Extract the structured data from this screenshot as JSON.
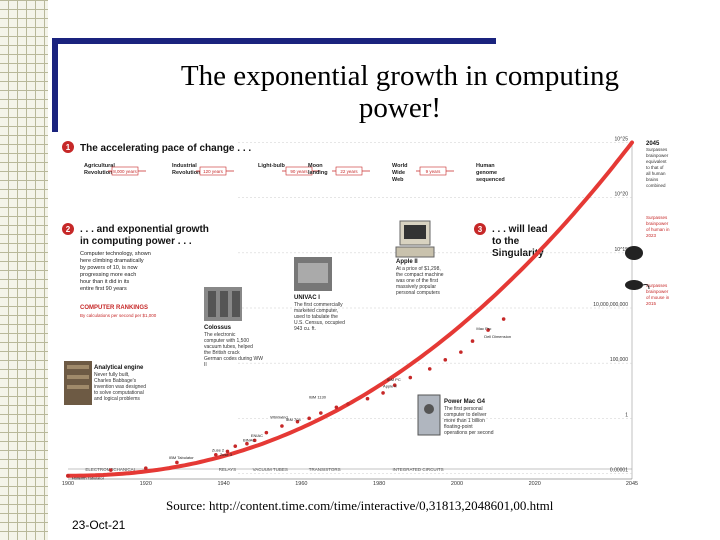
{
  "slide": {
    "title_line1": "The exponential growth in computing",
    "title_line2": "power!",
    "source": "Source: http://content.time.com/time/interactive/0,31813,2048601,00.html",
    "date": "23-Oct-21"
  },
  "chart_data": {
    "type": "scatter",
    "y_scale": "log",
    "x_ticks": [
      "1900",
      "1920",
      "1940",
      "1960",
      "1980",
      "2000",
      "2020",
      "2045"
    ],
    "y_ticks": [
      "0.00001",
      "1",
      "100,000",
      "10,000,000,000",
      "10^15",
      "10^20",
      "10^25"
    ],
    "series": [
      {
        "points": [
          {
            "x": 1900,
            "y": 6e-06
          },
          {
            "x": 1911,
            "y": 2e-05
          },
          {
            "x": 1920,
            "y": 3e-05
          },
          {
            "x": 1928,
            "y": 0.0001
          },
          {
            "x": 1938,
            "y": 0.0005
          },
          {
            "x": 1941,
            "y": 0.001
          },
          {
            "x": 1943,
            "y": 0.003
          },
          {
            "x": 1946,
            "y": 0.005
          },
          {
            "x": 1948,
            "y": 0.01
          },
          {
            "x": 1951,
            "y": 0.05
          },
          {
            "x": 1955,
            "y": 0.2
          },
          {
            "x": 1959,
            "y": 0.5
          },
          {
            "x": 1962,
            "y": 1
          },
          {
            "x": 1965,
            "y": 3
          },
          {
            "x": 1969,
            "y": 10
          },
          {
            "x": 1972,
            "y": 20
          },
          {
            "x": 1977,
            "y": 60
          },
          {
            "x": 1981,
            "y": 200
          },
          {
            "x": 1984,
            "y": 1000
          },
          {
            "x": 1988,
            "y": 5000
          },
          {
            "x": 1993,
            "y": 30000
          },
          {
            "x": 1997,
            "y": 200000
          },
          {
            "x": 2001,
            "y": 1000000
          },
          {
            "x": 2004,
            "y": 10000000
          },
          {
            "x": 2008,
            "y": 100000000
          },
          {
            "x": 2012,
            "y": 1000000000
          }
        ]
      }
    ],
    "eras": [
      "ELECTROMECHANICAL",
      "RELAYS",
      "VACUUM TUBES",
      "TRANSISTORS",
      "INTEGRATED CIRCUITS"
    ],
    "sections": {
      "s1_num": "1",
      "s1_title": "The accelerating pace of change . . .",
      "s2_num": "2",
      "s2_title_a": ". . . and exponential growth",
      "s2_title_b": "in computing power . . .",
      "s2_body": [
        "Computer technology, shown",
        "here climbing dramatically",
        "by powers of 10, is now",
        "progressing more each",
        "hour than it did in its",
        "entire first 90 years"
      ],
      "s3_num": "3",
      "s3_title_a": ". . . will lead",
      "s3_title_b": "to the",
      "s3_title_c": "Singularity"
    },
    "timeline": [
      {
        "label": "Agricultural Revolution",
        "gap": "8,000 years"
      },
      {
        "label": "Industrial Revolution",
        "gap": "120 years"
      },
      {
        "label": "Light-bulb",
        "gap": "90 years"
      },
      {
        "label": "Moon landing",
        "gap": "22 years"
      },
      {
        "label": "World Wide Web",
        "gap": "9 years"
      },
      {
        "label": "Human genome sequenced",
        "gap": ""
      }
    ],
    "rankings_title": "COMPUTER RANKINGS",
    "rankings_sub": "By calculations per second per $1,000",
    "callouts": [
      {
        "title": "Analytical engine",
        "body": "Never fully built, Charles Babbage's invention was designed to solve computational and logical problems"
      },
      {
        "title": "Colossus",
        "body": "The electronic computer with 1,500 vacuum tubes, helped the British crack German codes during WW II"
      },
      {
        "title": "UNIVAC I",
        "body": "The first commercially marketed computer, used to tabulate the U.S. Census, occupied 943 cu. ft."
      },
      {
        "title": "Apple II",
        "body": "At a price of $1,298, the compact machine was one of the first massively popular personal computers"
      },
      {
        "title": "Power Mac G4",
        "body": "The first personal computer to deliver more than 1 billion floating-point operations per second"
      }
    ],
    "right_notes": [
      {
        "title": "2045",
        "body": "Surpasses brainpower equivalent to that of all human brains combined"
      },
      {
        "title": "",
        "body": "Surpasses brainpower of human in 2023"
      },
      {
        "title": "",
        "body": "Surpasses brainpower of mouse in 2015"
      }
    ],
    "point_labels": [
      "Hollerith Tabulator",
      "IBM Tabulator",
      "Zuse 3",
      "Zuse 2",
      "BINAC",
      "ENIAC",
      "IBM 704",
      "Whirlwind",
      "IBM 1130",
      "Apple II",
      "IBM PC",
      "Mac Pro",
      "Dell Dimension"
    ]
  }
}
